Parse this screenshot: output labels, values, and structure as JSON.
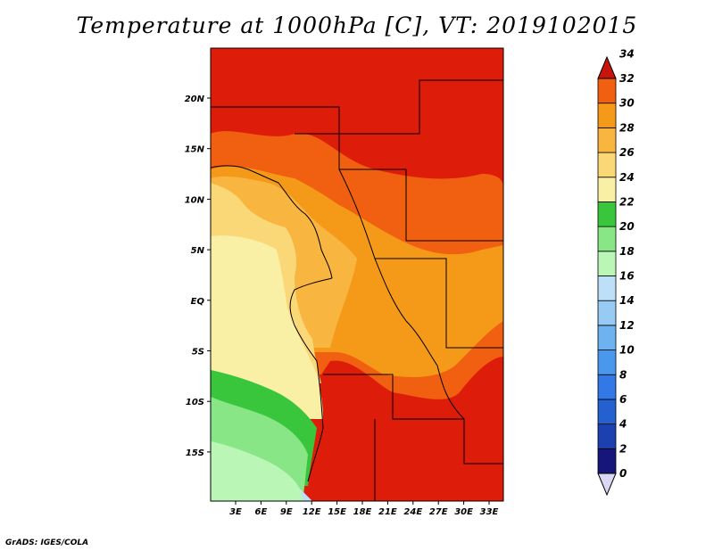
{
  "title": "Temperature at 1000hPa [C], VT: 2019102015",
  "footer": "GrADS: IGES/COLA",
  "colors": {
    "c0_2": "#15157a",
    "c2_4": "#1c40b0",
    "c4_6": "#2460d0",
    "c6_8": "#3278e6",
    "c8_10": "#4a98ee",
    "c10_12": "#6eb2f0",
    "c12_14": "#98cbf4",
    "c14_16": "#bddff8",
    "c16_18": "#baf6b6",
    "c18_20": "#88e686",
    "c20_22": "#3ac63c",
    "c22_24": "#f9f0a6",
    "c24_26": "#fad777",
    "c26_28": "#f8b640",
    "c28_30": "#f59a18",
    "c30_32": "#f06010",
    "c32_34": "#dd1d0a",
    "c34up": "#c8140c"
  },
  "map": {
    "lon_labels": [
      "3E",
      "6E",
      "9E",
      "12E",
      "15E",
      "18E",
      "21E",
      "24E",
      "27E",
      "30E",
      "33E"
    ],
    "lat_labels": [
      "20N",
      "15N",
      "10N",
      "5N",
      "EQ",
      "5S",
      "10S",
      "15S"
    ]
  },
  "colorbar": {
    "levels": [
      "0",
      "2",
      "4",
      "6",
      "8",
      "10",
      "12",
      "14",
      "16",
      "18",
      "20",
      "22",
      "24",
      "26",
      "28",
      "30",
      "32",
      "34"
    ]
  }
}
